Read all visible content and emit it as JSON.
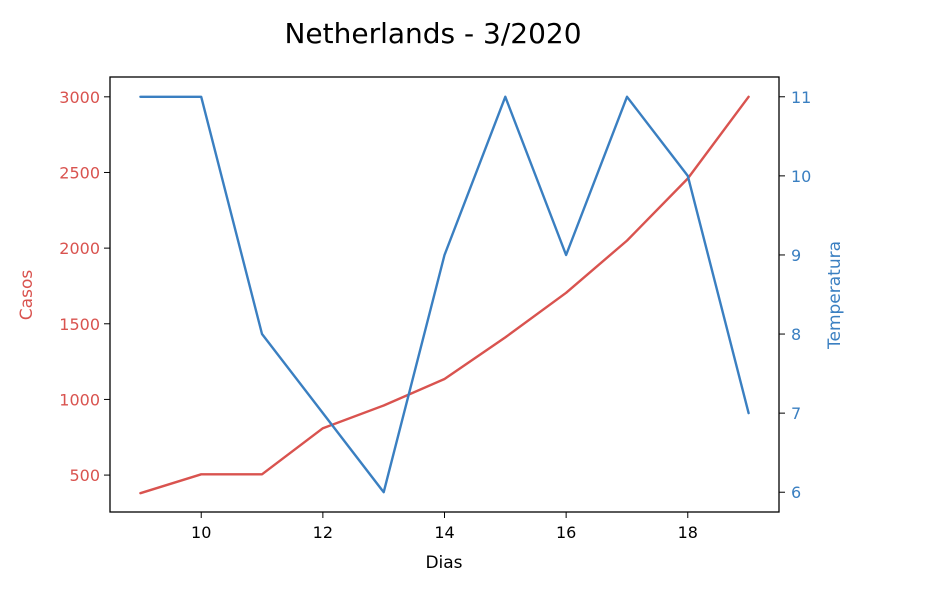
{
  "chart_data": {
    "type": "line",
    "title": "Netherlands - 3/2020",
    "xlabel": "Dias",
    "x": [
      9,
      10,
      11,
      12,
      13,
      14,
      15,
      16,
      17,
      18,
      19
    ],
    "xlim": [
      8.5,
      19.5
    ],
    "xticks": [
      10,
      12,
      14,
      16,
      18
    ],
    "grid": false,
    "y_left": {
      "label": "Casos",
      "color": "#d9534f",
      "lim": [
        256,
        3131
      ],
      "ticks": [
        500,
        1000,
        1500,
        2000,
        2500,
        3000
      ]
    },
    "y_right": {
      "label": "Temperatura",
      "color": "#3a7fc1",
      "lim": [
        5.75,
        11.25
      ],
      "ticks": [
        6,
        7,
        8,
        9,
        10,
        11
      ]
    },
    "series": [
      {
        "axis": "left",
        "color": "#d9534f",
        "values": [
          380,
          505,
          505,
          810,
          960,
          1135,
          1410,
          1705,
          2050,
          2460,
          3000
        ]
      },
      {
        "axis": "right",
        "color": "#3a7fc1",
        "values": [
          11,
          11,
          8,
          7,
          6,
          9,
          11,
          9,
          11,
          10,
          7
        ]
      }
    ]
  }
}
